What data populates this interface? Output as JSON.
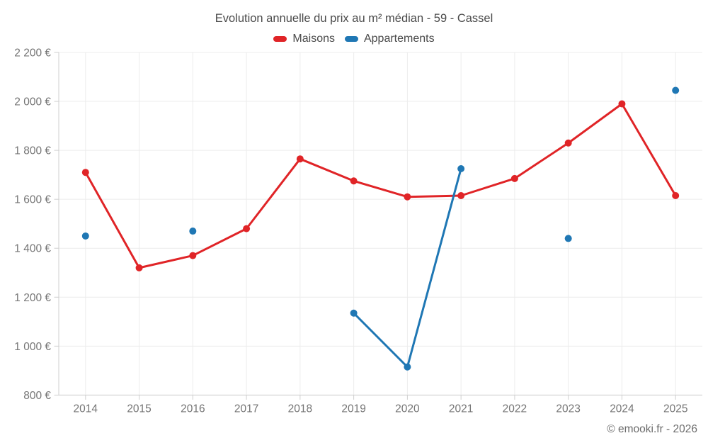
{
  "title": "Evolution annuelle du prix au m² médian - 59 - Cassel",
  "legend": [
    {
      "label": "Maisons",
      "color": "#e02427"
    },
    {
      "label": "Appartements",
      "color": "#1f77b4"
    }
  ],
  "footer": "© emooki.fr - 2026",
  "chart_data": {
    "type": "line",
    "title": "Evolution annuelle du prix au m² médian - 59 - Cassel",
    "x": [
      2014,
      2015,
      2016,
      2017,
      2018,
      2019,
      2020,
      2021,
      2022,
      2023,
      2024,
      2025
    ],
    "series": [
      {
        "name": "Maisons",
        "color": "#e02427",
        "values": [
          1710,
          1320,
          1370,
          1480,
          1765,
          1675,
          1610,
          1615,
          1685,
          1830,
          1990,
          1615
        ]
      },
      {
        "name": "Appartements",
        "color": "#1f77b4",
        "values": [
          1450,
          null,
          1470,
          null,
          null,
          1135,
          915,
          1725,
          null,
          1440,
          null,
          2045
        ]
      }
    ],
    "xlabel": "",
    "ylabel": "",
    "ylim": [
      800,
      2200
    ],
    "y_ticks": [
      800,
      1000,
      1200,
      1400,
      1600,
      1800,
      2000,
      2200
    ],
    "y_tick_labels": [
      "800 €",
      "1 000 €",
      "1 200 €",
      "1 400 €",
      "1 600 €",
      "1 800 €",
      "2 000 €",
      "2 200 €"
    ],
    "grid": true,
    "legend_position": "top",
    "styles": {
      "grid_color": "#ececec",
      "axis_color": "#cfcfcf",
      "tick_label_color": "#757575",
      "line_width": 3,
      "point_radius": 5
    }
  }
}
